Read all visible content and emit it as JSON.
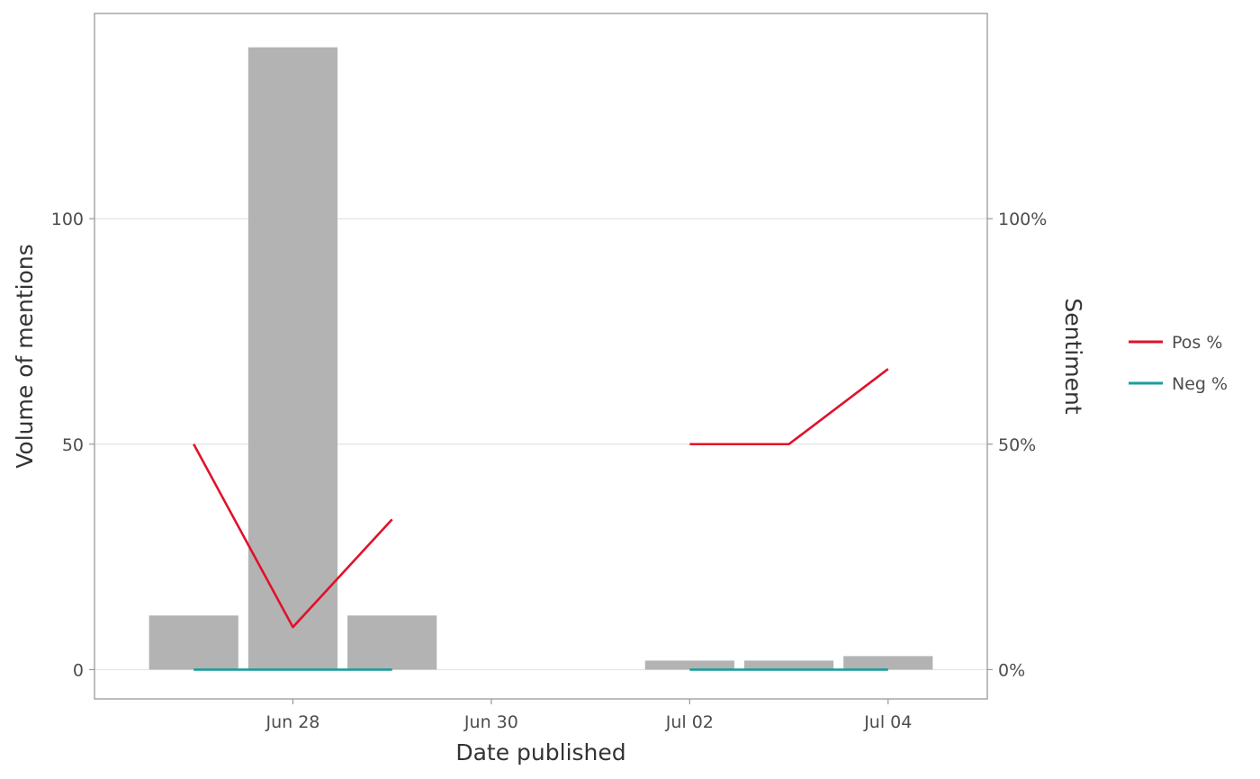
{
  "chart_data": {
    "type": "bar",
    "xlabel": "Date published",
    "ylabel": "Volume of mentions",
    "y2label": "Sentiment",
    "xlim": [
      "2022-06-26",
      "2022-07-05"
    ],
    "ylim": [
      -6.5,
      145.5
    ],
    "y2lim": [
      -0.065,
      1.455
    ],
    "x_ticks": [
      {
        "date": "2022-06-28",
        "label": "Jun 28"
      },
      {
        "date": "2022-06-30",
        "label": "Jun 30"
      },
      {
        "date": "2022-07-02",
        "label": "Jul 02"
      },
      {
        "date": "2022-07-04",
        "label": "Jul 04"
      }
    ],
    "y_ticks": [
      {
        "value": 0,
        "label": "0"
      },
      {
        "value": 50,
        "label": "50"
      },
      {
        "value": 100,
        "label": "100"
      }
    ],
    "y2_ticks": [
      {
        "value": 0,
        "label": "0%"
      },
      {
        "value": 0.5,
        "label": "50%"
      },
      {
        "value": 1,
        "label": "100%"
      }
    ],
    "bars": {
      "color": "#b3b3b3",
      "dates": [
        "2022-06-27",
        "2022-06-28",
        "2022-06-29",
        "2022-07-02",
        "2022-07-03",
        "2022-07-04"
      ],
      "values": [
        12,
        138,
        12,
        2,
        2,
        3
      ]
    },
    "series": [
      {
        "name": "Pos %",
        "color": "#e0112b",
        "segments": [
          {
            "dates": [
              "2022-06-27",
              "2022-06-28",
              "2022-06-29"
            ],
            "values": [
              0.5,
              0.0942,
              0.3333
            ]
          },
          {
            "dates": [
              "2022-07-02",
              "2022-07-03",
              "2022-07-04"
            ],
            "values": [
              0.5,
              0.5,
              0.6667
            ]
          }
        ]
      },
      {
        "name": "Neg %",
        "color": "#1a9e9e",
        "segments": [
          {
            "dates": [
              "2022-06-27",
              "2022-06-28",
              "2022-06-29"
            ],
            "values": [
              0,
              0,
              0
            ]
          },
          {
            "dates": [
              "2022-07-02",
              "2022-07-03",
              "2022-07-04"
            ],
            "values": [
              0,
              0,
              0
            ]
          }
        ]
      }
    ],
    "grid": true,
    "legend_position": "right"
  }
}
